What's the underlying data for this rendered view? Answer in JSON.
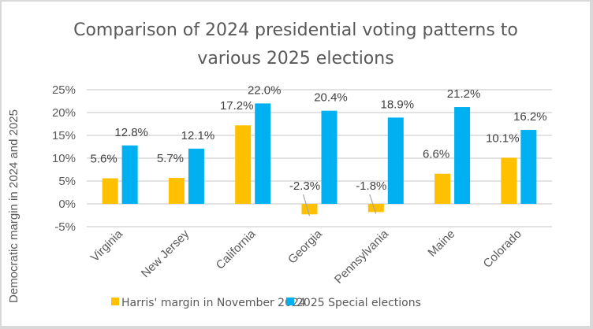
{
  "chart_data": {
    "type": "bar",
    "title_lines": [
      "Comparison of 2024 presidential voting patterns to",
      "various 2025 elections"
    ],
    "title": "Comparison of 2024 presidential voting patterns to various 2025 elections",
    "xlabel": "",
    "ylabel": "Democratic margin in 2024 and 2025",
    "ylim": [
      -5,
      25
    ],
    "yticks": [
      25,
      20,
      15,
      10,
      5,
      0,
      -5
    ],
    "ytick_labels": [
      "25%",
      "20%",
      "15%",
      "10%",
      "5%",
      "0%",
      "-5%"
    ],
    "grid": true,
    "legend_position": "bottom",
    "categories": [
      "Virginia",
      "New Jersey",
      "California",
      "Georgia",
      "Pennsylvania",
      "Maine",
      "Colorado"
    ],
    "series": [
      {
        "name": "Harris' margin in November 2024",
        "color": "#FFC000",
        "values": [
          5.6,
          5.7,
          17.2,
          -2.3,
          -1.8,
          6.6,
          10.1
        ],
        "labels": [
          "5.6%",
          "5.7%",
          "17.2%",
          "-2.3%",
          "-1.8%",
          "6.6%",
          "10.1%"
        ]
      },
      {
        "name": "2025 Special elections",
        "color": "#00B0F0",
        "values": [
          12.8,
          12.1,
          22.0,
          20.4,
          18.9,
          21.2,
          16.2
        ],
        "labels": [
          "12.8%",
          "12.1%",
          "22.0%",
          "20.4%",
          "18.9%",
          "21.2%",
          "16.2%"
        ]
      }
    ]
  }
}
